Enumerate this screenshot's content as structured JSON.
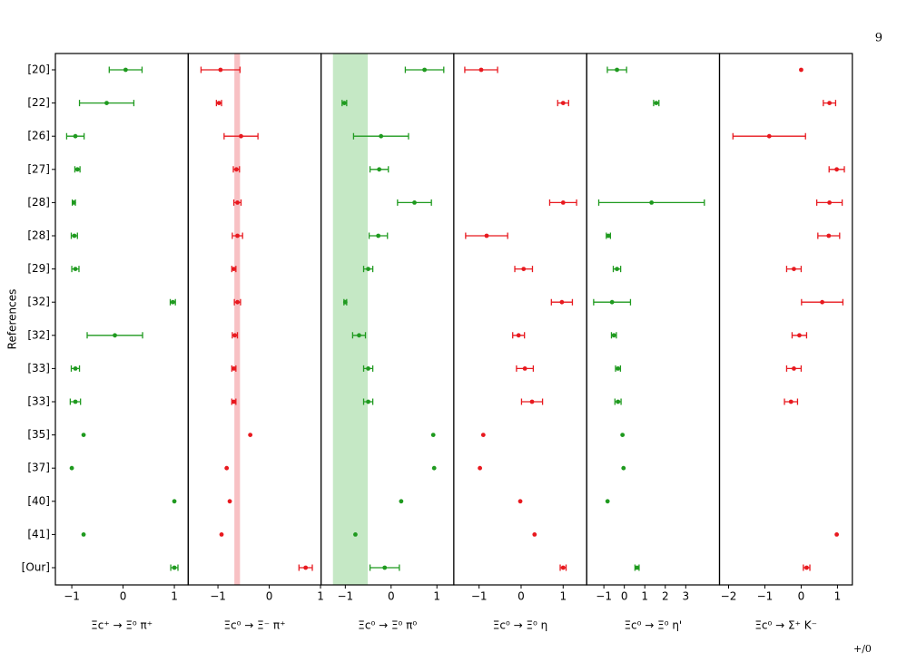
{
  "page_number": "9",
  "footer_fragment": "+/0",
  "chart_data": {
    "type": "errorbar_panels",
    "ylabel": "References",
    "categories": [
      "[20]",
      "[22]",
      "[26]",
      "[27]",
      "[28]",
      "[28]",
      "[29]",
      "[32]",
      "[32]",
      "[33]",
      "[33]",
      "[35]",
      "[37]",
      "[40]",
      "[41]",
      "[Our]"
    ],
    "panels": [
      {
        "xlabel": "Ξc⁺ → Ξ⁰ π⁺",
        "color": "#1f9a1f",
        "xlim": [
          -1.32,
          1.27
        ],
        "xticks": [
          {
            "value": -1,
            "label": "−1"
          },
          0,
          1
        ],
        "values": [
          0.05,
          -0.32,
          -0.93,
          -0.89,
          -0.96,
          -0.95,
          -0.93,
          0.97,
          -0.16,
          -0.93,
          -0.93,
          -0.77,
          -1.0,
          1.0,
          -0.77,
          1.0
        ],
        "errors": [
          0.32,
          0.53,
          0.17,
          0.05,
          0.03,
          0.06,
          0.07,
          0.05,
          0.54,
          0.08,
          0.1,
          null,
          null,
          null,
          null,
          0.07
        ]
      },
      {
        "xlabel": "Ξc⁰ → Ξ⁻ π⁺",
        "color": "#e8191f",
        "xlim": [
          -1.58,
          1.01
        ],
        "xticks": [
          {
            "value": -1,
            "label": "−1"
          },
          0,
          1
        ],
        "band": [
          -0.68,
          -0.57
        ],
        "band_color": "#f4a0a4",
        "values": [
          -0.95,
          -0.98,
          -0.55,
          -0.64,
          -0.62,
          -0.62,
          -0.69,
          -0.62,
          -0.67,
          -0.69,
          -0.69,
          -0.37,
          -0.83,
          -0.77,
          -0.93,
          0.71
        ],
        "errors": [
          0.38,
          0.05,
          0.33,
          0.06,
          0.07,
          0.1,
          0.04,
          0.06,
          0.05,
          0.04,
          0.04,
          null,
          null,
          null,
          null,
          0.13
        ]
      },
      {
        "xlabel": "Ξc⁰ → Ξ⁰ π⁰",
        "color": "#1f9a1f",
        "xlim": [
          -1.53,
          1.37
        ],
        "xticks": [
          {
            "value": -1,
            "label": "−1"
          },
          0,
          1
        ],
        "band": [
          -1.27,
          -0.51
        ],
        "band_color": "#a6dba6",
        "values": [
          0.73,
          -1.02,
          -0.22,
          -0.26,
          0.51,
          -0.28,
          -0.5,
          -1.0,
          -0.7,
          -0.5,
          -0.5,
          0.92,
          0.94,
          0.22,
          -0.78,
          -0.14
        ],
        "errors": [
          0.42,
          0.05,
          0.6,
          0.2,
          0.37,
          0.2,
          0.1,
          0.03,
          0.14,
          0.1,
          0.1,
          null,
          null,
          null,
          null,
          0.32
        ]
      },
      {
        "xlabel": "Ξc⁰ → Ξ⁰ η",
        "color": "#e8191f",
        "xlim": [
          -1.6,
          1.56
        ],
        "xticks": [
          {
            "value": -1,
            "label": "−1"
          },
          0,
          1
        ],
        "values": [
          -0.95,
          1.0,
          null,
          null,
          1.0,
          -0.82,
          0.06,
          0.97,
          -0.06,
          0.09,
          0.26,
          -0.9,
          -0.98,
          -0.02,
          0.32,
          1.0
        ],
        "errors": [
          0.39,
          0.13,
          null,
          null,
          0.32,
          0.5,
          0.21,
          0.25,
          0.14,
          0.2,
          0.25,
          null,
          null,
          null,
          null,
          0.07
        ]
      },
      {
        "xlabel": "Ξc⁰ → Ξ⁰ η'",
        "color": "#1f9a1f",
        "xlim": [
          -1.84,
          4.65
        ],
        "xticks": [
          {
            "value": -1,
            "label": "−1"
          },
          0,
          1,
          2,
          3
        ],
        "values": [
          -0.36,
          1.56,
          null,
          null,
          1.33,
          -0.78,
          -0.36,
          -0.6,
          -0.51,
          -0.31,
          -0.31,
          -0.09,
          -0.04,
          -0.82,
          null,
          0.62
        ],
        "errors": [
          0.47,
          0.13,
          null,
          null,
          2.58,
          0.1,
          0.18,
          0.9,
          0.12,
          0.12,
          0.15,
          null,
          null,
          null,
          null,
          0.1
        ]
      },
      {
        "xlabel": "Ξc⁰ → Σ⁺ K⁻",
        "color": "#e8191f",
        "xlim": [
          -2.25,
          1.41
        ],
        "xticks": [
          {
            "value": -2,
            "label": "−2"
          },
          {
            "value": -1,
            "label": "−1"
          },
          0,
          1
        ],
        "values": [
          0.0,
          0.78,
          -0.88,
          0.98,
          0.78,
          0.76,
          -0.2,
          0.58,
          -0.05,
          -0.2,
          -0.28,
          null,
          null,
          null,
          0.98,
          0.15
        ],
        "errors": [
          null,
          0.17,
          1.0,
          0.21,
          0.35,
          0.3,
          0.2,
          0.57,
          0.2,
          0.2,
          0.18,
          null,
          null,
          null,
          null,
          0.09
        ]
      }
    ]
  }
}
